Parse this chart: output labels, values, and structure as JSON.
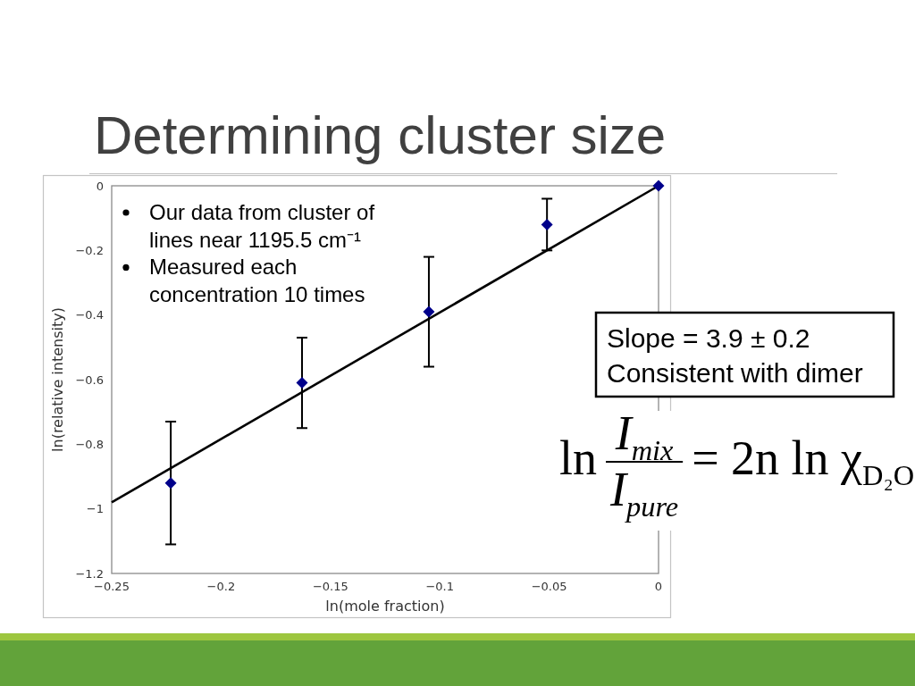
{
  "chart_data": {
    "type": "scatter",
    "title": "Determining cluster size",
    "xlabel": "ln(mole fraction)",
    "ylabel": "ln(relative intensity)",
    "annotations": [
      "Our data from cluster of lines near 1195.5 cm⁻¹",
      "Measured each concentration 10 times",
      "Slope = 3.9 ± 0.2",
      "Consistent with dimer",
      "ln",
      "I$_{mix}$",
      "I$_{pure}$",
      "= 2n ln χ$_{D₂O}$"
    ],
    "series": [
      {
        "color": "#00008b",
        "marker": "diamond",
        "x": [
          -0.223,
          -0.163,
          -0.105,
          -0.051,
          0
        ],
        "values": [
          -0.92,
          -0.61,
          -0.39,
          -0.12,
          0
        ],
        "errors": [
          0.19,
          0.14,
          0.17,
          0.08,
          null
        ]
      },
      {
        "type": "line",
        "color": "#000000",
        "x": [
          -0.25,
          0
        ],
        "values": [
          -0.98,
          0
        ]
      }
    ],
    "xlim": [
      -0.25,
      0
    ],
    "ylim": [
      -1.2,
      0
    ],
    "xticks": [
      {
        "value": -0.25,
        "label": "−0.25"
      },
      {
        "value": -0.2,
        "label": "−0.2"
      },
      {
        "value": -0.15,
        "label": "−0.15"
      },
      {
        "value": -0.1,
        "label": "−0.1"
      },
      {
        "value": -0.05,
        "label": "−0.05"
      },
      0
    ],
    "yticks": [
      0,
      {
        "value": -0.2,
        "label": "−0.2"
      },
      {
        "value": -0.4,
        "label": "−0.4"
      },
      {
        "value": -0.6,
        "label": "−0.6"
      },
      {
        "value": -0.8,
        "label": "−0.8"
      },
      {
        "value": -1,
        "label": "−1"
      },
      {
        "value": -1.2,
        "label": "−1.2"
      }
    ]
  }
}
